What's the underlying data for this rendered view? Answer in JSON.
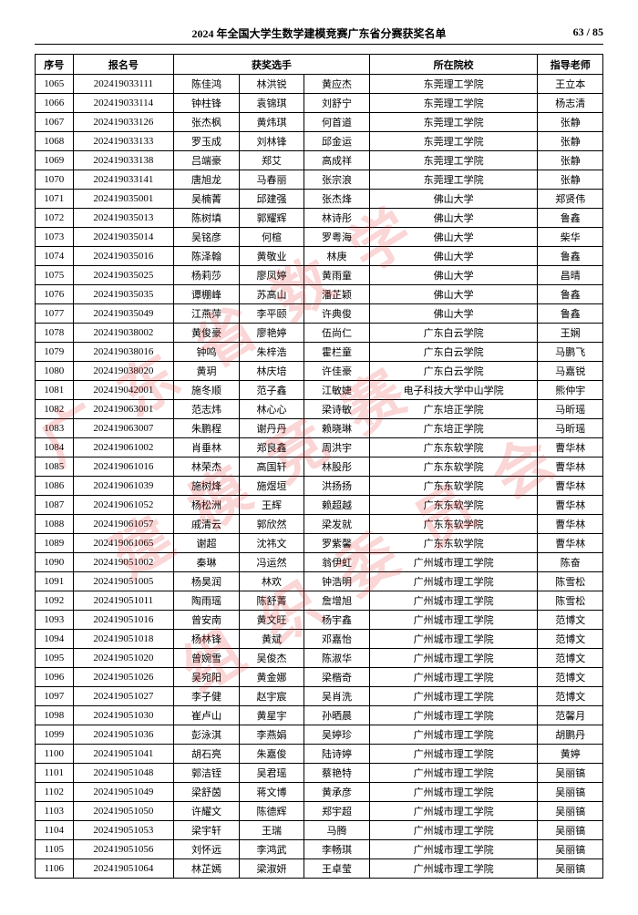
{
  "header": {
    "title": "2024 年全国大学生数学建模竞赛广东省分赛获奖名单",
    "page_current": "63",
    "page_sep": " / ",
    "page_total": "85"
  },
  "watermark": "广东省数学建模竞赛\n组织委员会",
  "table": {
    "headers": {
      "idx": "序号",
      "reg": "报名号",
      "winners": "获奖选手",
      "school": "所在院校",
      "teacher": "指导老师"
    },
    "rows": [
      {
        "idx": "1065",
        "reg": "202419033111",
        "w1": "陈佳鸿",
        "w2": "林洪锐",
        "w3": "黄应杰",
        "school": "东莞理工学院",
        "teacher": "王立本"
      },
      {
        "idx": "1066",
        "reg": "202419033114",
        "w1": "钟柱锋",
        "w2": "袁锦琪",
        "w3": "刘舒宁",
        "school": "东莞理工学院",
        "teacher": "杨志清"
      },
      {
        "idx": "1067",
        "reg": "202419033126",
        "w1": "张杰枫",
        "w2": "黄炜琪",
        "w3": "何首道",
        "school": "东莞理工学院",
        "teacher": "张静"
      },
      {
        "idx": "1068",
        "reg": "202419033133",
        "w1": "罗玉成",
        "w2": "刘林锋",
        "w3": "邱金运",
        "school": "东莞理工学院",
        "teacher": "张静"
      },
      {
        "idx": "1069",
        "reg": "202419033138",
        "w1": "吕端豪",
        "w2": "郑艾",
        "w3": "高成祥",
        "school": "东莞理工学院",
        "teacher": "张静"
      },
      {
        "idx": "1070",
        "reg": "202419033141",
        "w1": "唐旭龙",
        "w2": "马春丽",
        "w3": "张宗浪",
        "school": "东莞理工学院",
        "teacher": "张静"
      },
      {
        "idx": "1071",
        "reg": "202419035001",
        "w1": "吴楠菁",
        "w2": "邱建强",
        "w3": "张杰烽",
        "school": "佛山大学",
        "teacher": "郑贤伟"
      },
      {
        "idx": "1072",
        "reg": "202419035013",
        "w1": "陈树填",
        "w2": "郭耀辉",
        "w3": "林诗彤",
        "school": "佛山大学",
        "teacher": "鲁鑫"
      },
      {
        "idx": "1073",
        "reg": "202419035014",
        "w1": "吴铭彦",
        "w2": "何楦",
        "w3": "罗粤海",
        "school": "佛山大学",
        "teacher": "柴华"
      },
      {
        "idx": "1074",
        "reg": "202419035016",
        "w1": "陈泽翰",
        "w2": "黄敬业",
        "w3": "林庚",
        "school": "佛山大学",
        "teacher": "鲁鑫"
      },
      {
        "idx": "1075",
        "reg": "202419035025",
        "w1": "杨莉莎",
        "w2": "廖凤婷",
        "w3": "黄雨童",
        "school": "佛山大学",
        "teacher": "昌晴"
      },
      {
        "idx": "1076",
        "reg": "202419035035",
        "w1": "谭棚峰",
        "w2": "苏高山",
        "w3": "潘芷颖",
        "school": "佛山大学",
        "teacher": "鲁鑫"
      },
      {
        "idx": "1077",
        "reg": "202419035049",
        "w1": "江燕萍",
        "w2": "李平颐",
        "w3": "许典俊",
        "school": "佛山大学",
        "teacher": "鲁鑫"
      },
      {
        "idx": "1078",
        "reg": "202419038002",
        "w1": "黄俊豪",
        "w2": "廖艳婷",
        "w3": "伍尚仁",
        "school": "广东白云学院",
        "teacher": "王娴"
      },
      {
        "idx": "1079",
        "reg": "202419038016",
        "w1": "钟鸣",
        "w2": "朱梓浩",
        "w3": "霍栏童",
        "school": "广东白云学院",
        "teacher": "马鹏飞"
      },
      {
        "idx": "1080",
        "reg": "202419038020",
        "w1": "黄玥",
        "w2": "林庆培",
        "w3": "许佳豪",
        "school": "广东白云学院",
        "teacher": "马嘉锐"
      },
      {
        "idx": "1081",
        "reg": "202419042001",
        "w1": "施冬顺",
        "w2": "范子鑫",
        "w3": "江敏婕",
        "school": "电子科技大学中山学院",
        "teacher": "熊仲宇"
      },
      {
        "idx": "1082",
        "reg": "202419063001",
        "w1": "范志炜",
        "w2": "林心心",
        "w3": "梁诗敏",
        "school": "广东培正学院",
        "teacher": "马昕瑶"
      },
      {
        "idx": "1083",
        "reg": "202419063007",
        "w1": "朱鹏程",
        "w2": "谢丹丹",
        "w3": "赖晓琳",
        "school": "广东培正学院",
        "teacher": "马昕瑶"
      },
      {
        "idx": "1084",
        "reg": "202419061002",
        "w1": "肖垂林",
        "w2": "郑良鑫",
        "w3": "周洪宇",
        "school": "广东东软学院",
        "teacher": "曹华林"
      },
      {
        "idx": "1085",
        "reg": "202419061016",
        "w1": "林荣杰",
        "w2": "高国轩",
        "w3": "林股彤",
        "school": "广东东软学院",
        "teacher": "曹华林"
      },
      {
        "idx": "1086",
        "reg": "202419061039",
        "w1": "施树烽",
        "w2": "施煜垣",
        "w3": "洪扬扬",
        "school": "广东东软学院",
        "teacher": "曹华林"
      },
      {
        "idx": "1087",
        "reg": "202419061052",
        "w1": "杨松洲",
        "w2": "王辉",
        "w3": "赖超越",
        "school": "广东东软学院",
        "teacher": "曹华林"
      },
      {
        "idx": "1088",
        "reg": "202419061057",
        "w1": "戚清云",
        "w2": "郭欣然",
        "w3": "梁发就",
        "school": "广东东软学院",
        "teacher": "曹华林"
      },
      {
        "idx": "1089",
        "reg": "202419061065",
        "w1": "谢超",
        "w2": "沈祎文",
        "w3": "罗紫馨",
        "school": "广东东软学院",
        "teacher": "曹华林"
      },
      {
        "idx": "1090",
        "reg": "202419051002",
        "w1": "秦琳",
        "w2": "冯运然",
        "w3": "翁伊虹",
        "school": "广州城市理工学院",
        "teacher": "陈奋"
      },
      {
        "idx": "1091",
        "reg": "202419051005",
        "w1": "杨昊润",
        "w2": "林欢",
        "w3": "钟浩明",
        "school": "广州城市理工学院",
        "teacher": "陈雪松"
      },
      {
        "idx": "1092",
        "reg": "202419051011",
        "w1": "陶雨瑶",
        "w2": "陈舒菁",
        "w3": "詹增旭",
        "school": "广州城市理工学院",
        "teacher": "陈雪松"
      },
      {
        "idx": "1093",
        "reg": "202419051016",
        "w1": "曾安南",
        "w2": "黄文旺",
        "w3": "杨宇鑫",
        "school": "广州城市理工学院",
        "teacher": "范博文"
      },
      {
        "idx": "1094",
        "reg": "202419051018",
        "w1": "杨林锋",
        "w2": "黄斌",
        "w3": "邓嘉怡",
        "school": "广州城市理工学院",
        "teacher": "范博文"
      },
      {
        "idx": "1095",
        "reg": "202419051020",
        "w1": "曾婉雪",
        "w2": "吴俊杰",
        "w3": "陈淑华",
        "school": "广州城市理工学院",
        "teacher": "范博文"
      },
      {
        "idx": "1096",
        "reg": "202419051026",
        "w1": "吴宛阳",
        "w2": "黄金娜",
        "w3": "梁楷奇",
        "school": "广州城市理工学院",
        "teacher": "范博文"
      },
      {
        "idx": "1097",
        "reg": "202419051027",
        "w1": "李子健",
        "w2": "赵宇宸",
        "w3": "吴肖洗",
        "school": "广州城市理工学院",
        "teacher": "范博文"
      },
      {
        "idx": "1098",
        "reg": "202419051030",
        "w1": "崔卢山",
        "w2": "黄星宇",
        "w3": "孙晒晨",
        "school": "广州城市理工学院",
        "teacher": "范馨月"
      },
      {
        "idx": "1099",
        "reg": "202419051036",
        "w1": "彭泳淇",
        "w2": "李燕娟",
        "w3": "吴婷珍",
        "school": "广州城市理工学院",
        "teacher": "胡鹏丹"
      },
      {
        "idx": "1100",
        "reg": "202419051041",
        "w1": "胡石亮",
        "w2": "朱嘉俊",
        "w3": "陆诗婷",
        "school": "广州城市理工学院",
        "teacher": "黄婷"
      },
      {
        "idx": "1101",
        "reg": "202419051048",
        "w1": "郭洁铚",
        "w2": "吴君瑶",
        "w3": "蔡艳特",
        "school": "广州城市理工学院",
        "teacher": "吴丽镐"
      },
      {
        "idx": "1102",
        "reg": "202419051049",
        "w1": "梁舒茵",
        "w2": "蒋文博",
        "w3": "黄承彦",
        "school": "广州城市理工学院",
        "teacher": "吴丽镐"
      },
      {
        "idx": "1103",
        "reg": "202419051050",
        "w1": "许耀文",
        "w2": "陈德辉",
        "w3": "郑宇超",
        "school": "广州城市理工学院",
        "teacher": "吴丽镐"
      },
      {
        "idx": "1104",
        "reg": "202419051053",
        "w1": "梁宇轩",
        "w2": "王瑞",
        "w3": "马腾",
        "school": "广州城市理工学院",
        "teacher": "吴丽镐"
      },
      {
        "idx": "1105",
        "reg": "202419051056",
        "w1": "刘怀远",
        "w2": "李鸿武",
        "w3": "李畅琪",
        "school": "广州城市理工学院",
        "teacher": "吴丽镐"
      },
      {
        "idx": "1106",
        "reg": "202419051064",
        "w1": "林芷嫣",
        "w2": "梁淑妍",
        "w3": "王卓莹",
        "school": "广州城市理工学院",
        "teacher": "吴丽镐"
      }
    ]
  }
}
